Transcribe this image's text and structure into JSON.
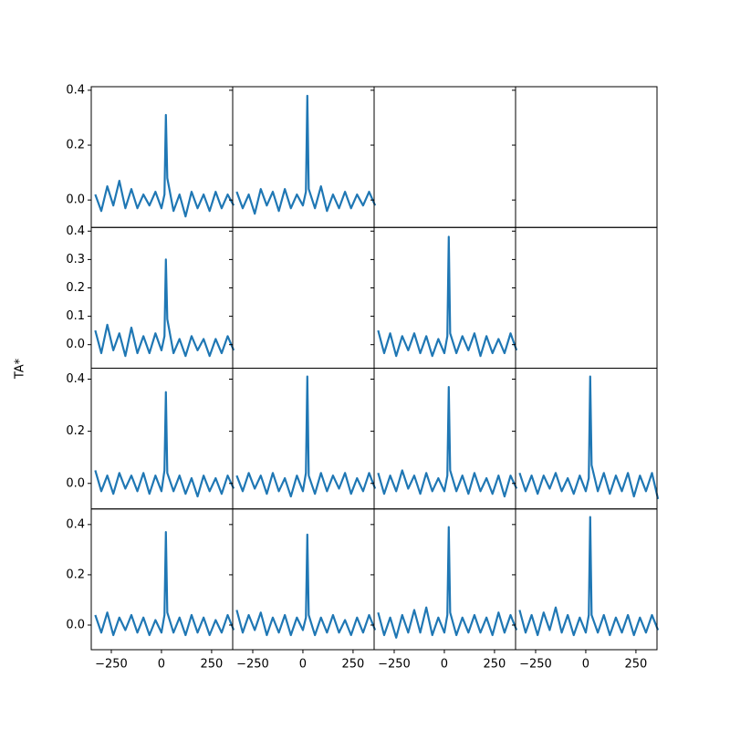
{
  "chart_data": {
    "type": "line",
    "ylabel": "TA*",
    "color": "#1f77b4",
    "x": [
      -330,
      -300,
      -270,
      -240,
      -210,
      -180,
      -150,
      -120,
      -90,
      -60,
      -30,
      0,
      15,
      22,
      29,
      60,
      90,
      120,
      150,
      180,
      210,
      240,
      270,
      300,
      330,
      360
    ],
    "xlim": [
      -350,
      355
    ],
    "xticks": [
      {
        "value": -250,
        "label": "−250"
      },
      0,
      250
    ],
    "rows": [
      {
        "ylim": [
          -0.1,
          0.413
        ],
        "yticks": [
          {
            "value": 0,
            "label": "0.0"
          },
          {
            "value": 0.2,
            "label": "0.2"
          },
          {
            "value": 0.4,
            "label": "0.4"
          }
        ],
        "panels": [
          [
            0.02,
            -0.04,
            0.05,
            -0.02,
            0.07,
            -0.03,
            0.04,
            -0.03,
            0.02,
            -0.02,
            0.03,
            -0.03,
            0.02,
            0.31,
            0.08,
            -0.04,
            0.02,
            -0.06,
            0.03,
            -0.03,
            0.02,
            -0.04,
            0.03,
            -0.03,
            0.02,
            -0.02
          ],
          [
            0.03,
            -0.03,
            0.02,
            -0.05,
            0.04,
            -0.02,
            0.03,
            -0.04,
            0.04,
            -0.03,
            0.02,
            -0.02,
            0.03,
            0.38,
            0.04,
            -0.03,
            0.05,
            -0.04,
            0.02,
            -0.03,
            0.03,
            -0.03,
            0.02,
            -0.02,
            0.03,
            -0.02
          ],
          null,
          null
        ]
      },
      {
        "ylim": [
          -0.083,
          0.413
        ],
        "yticks": [
          {
            "value": 0,
            "label": "0.0"
          },
          {
            "value": 0.1,
            "label": "0.1"
          },
          {
            "value": 0.2,
            "label": "0.2"
          },
          {
            "value": 0.3,
            "label": "0.3"
          },
          {
            "value": 0.4,
            "label": "0.4"
          }
        ],
        "panels": [
          [
            0.05,
            -0.03,
            0.07,
            -0.02,
            0.04,
            -0.04,
            0.06,
            -0.03,
            0.03,
            -0.03,
            0.04,
            -0.02,
            0.03,
            0.3,
            0.09,
            -0.03,
            0.02,
            -0.04,
            0.03,
            -0.02,
            0.02,
            -0.04,
            0.02,
            -0.03,
            0.03,
            -0.02
          ],
          null,
          [
            0.05,
            -0.03,
            0.04,
            -0.04,
            0.03,
            -0.02,
            0.04,
            -0.03,
            0.03,
            -0.04,
            0.02,
            -0.03,
            0.03,
            0.38,
            0.04,
            -0.03,
            0.03,
            -0.02,
            0.04,
            -0.04,
            0.03,
            -0.03,
            0.02,
            -0.03,
            0.04,
            -0.02
          ],
          null
        ]
      },
      {
        "ylim": [
          -0.098,
          0.442
        ],
        "yticks": [
          {
            "value": 0,
            "label": "0.0"
          },
          {
            "value": 0.2,
            "label": "0.2"
          },
          {
            "value": 0.4,
            "label": "0.4"
          }
        ],
        "panels": [
          [
            0.05,
            -0.03,
            0.03,
            -0.04,
            0.04,
            -0.02,
            0.03,
            -0.03,
            0.04,
            -0.04,
            0.03,
            -0.03,
            0.05,
            0.35,
            0.04,
            -0.03,
            0.03,
            -0.04,
            0.02,
            -0.05,
            0.03,
            -0.03,
            0.02,
            -0.04,
            0.03,
            -0.02
          ],
          [
            0.03,
            -0.03,
            0.04,
            -0.02,
            0.03,
            -0.04,
            0.04,
            -0.03,
            0.02,
            -0.05,
            0.03,
            -0.03,
            0.04,
            0.41,
            0.03,
            -0.04,
            0.04,
            -0.03,
            0.03,
            -0.02,
            0.04,
            -0.04,
            0.02,
            -0.03,
            0.04,
            -0.02
          ],
          [
            0.04,
            -0.04,
            0.03,
            -0.03,
            0.05,
            -0.02,
            0.03,
            -0.04,
            0.04,
            -0.03,
            0.02,
            -0.03,
            0.03,
            0.37,
            0.05,
            -0.03,
            0.03,
            -0.04,
            0.04,
            -0.03,
            0.02,
            -0.04,
            0.03,
            -0.05,
            0.03,
            -0.02
          ],
          [
            0.04,
            -0.03,
            0.03,
            -0.04,
            0.03,
            -0.02,
            0.04,
            -0.03,
            0.02,
            -0.04,
            0.03,
            -0.03,
            0.02,
            0.41,
            0.07,
            -0.03,
            0.04,
            -0.04,
            0.03,
            -0.03,
            0.04,
            -0.05,
            0.03,
            -0.03,
            0.04,
            -0.06
          ]
        ]
      },
      {
        "ylim": [
          -0.098,
          0.462
        ],
        "yticks": [
          {
            "value": 0,
            "label": "0.0"
          },
          {
            "value": 0.2,
            "label": "0.2"
          },
          {
            "value": 0.4,
            "label": "0.4"
          }
        ],
        "panels": [
          [
            0.04,
            -0.03,
            0.05,
            -0.04,
            0.03,
            -0.02,
            0.04,
            -0.03,
            0.03,
            -0.04,
            0.02,
            -0.03,
            0.04,
            0.37,
            0.05,
            -0.03,
            0.03,
            -0.04,
            0.04,
            -0.03,
            0.03,
            -0.04,
            0.02,
            -0.03,
            0.04,
            -0.02
          ],
          [
            0.06,
            -0.03,
            0.04,
            -0.02,
            0.05,
            -0.04,
            0.03,
            -0.03,
            0.04,
            -0.04,
            0.03,
            -0.02,
            0.03,
            0.36,
            0.04,
            -0.04,
            0.03,
            -0.03,
            0.04,
            -0.03,
            0.02,
            -0.04,
            0.03,
            -0.03,
            0.04,
            -0.02
          ],
          [
            0.05,
            -0.04,
            0.03,
            -0.05,
            0.04,
            -0.03,
            0.06,
            -0.03,
            0.07,
            -0.04,
            0.03,
            -0.03,
            0.04,
            0.39,
            0.05,
            -0.04,
            0.03,
            -0.03,
            0.04,
            -0.03,
            0.03,
            -0.04,
            0.05,
            -0.03,
            0.04,
            -0.02
          ],
          [
            0.06,
            -0.03,
            0.04,
            -0.04,
            0.05,
            -0.02,
            0.07,
            -0.03,
            0.04,
            -0.04,
            0.03,
            -0.03,
            0.04,
            0.43,
            0.04,
            -0.03,
            0.04,
            -0.04,
            0.03,
            -0.03,
            0.04,
            -0.04,
            0.03,
            -0.03,
            0.04,
            -0.02
          ]
        ]
      }
    ]
  }
}
